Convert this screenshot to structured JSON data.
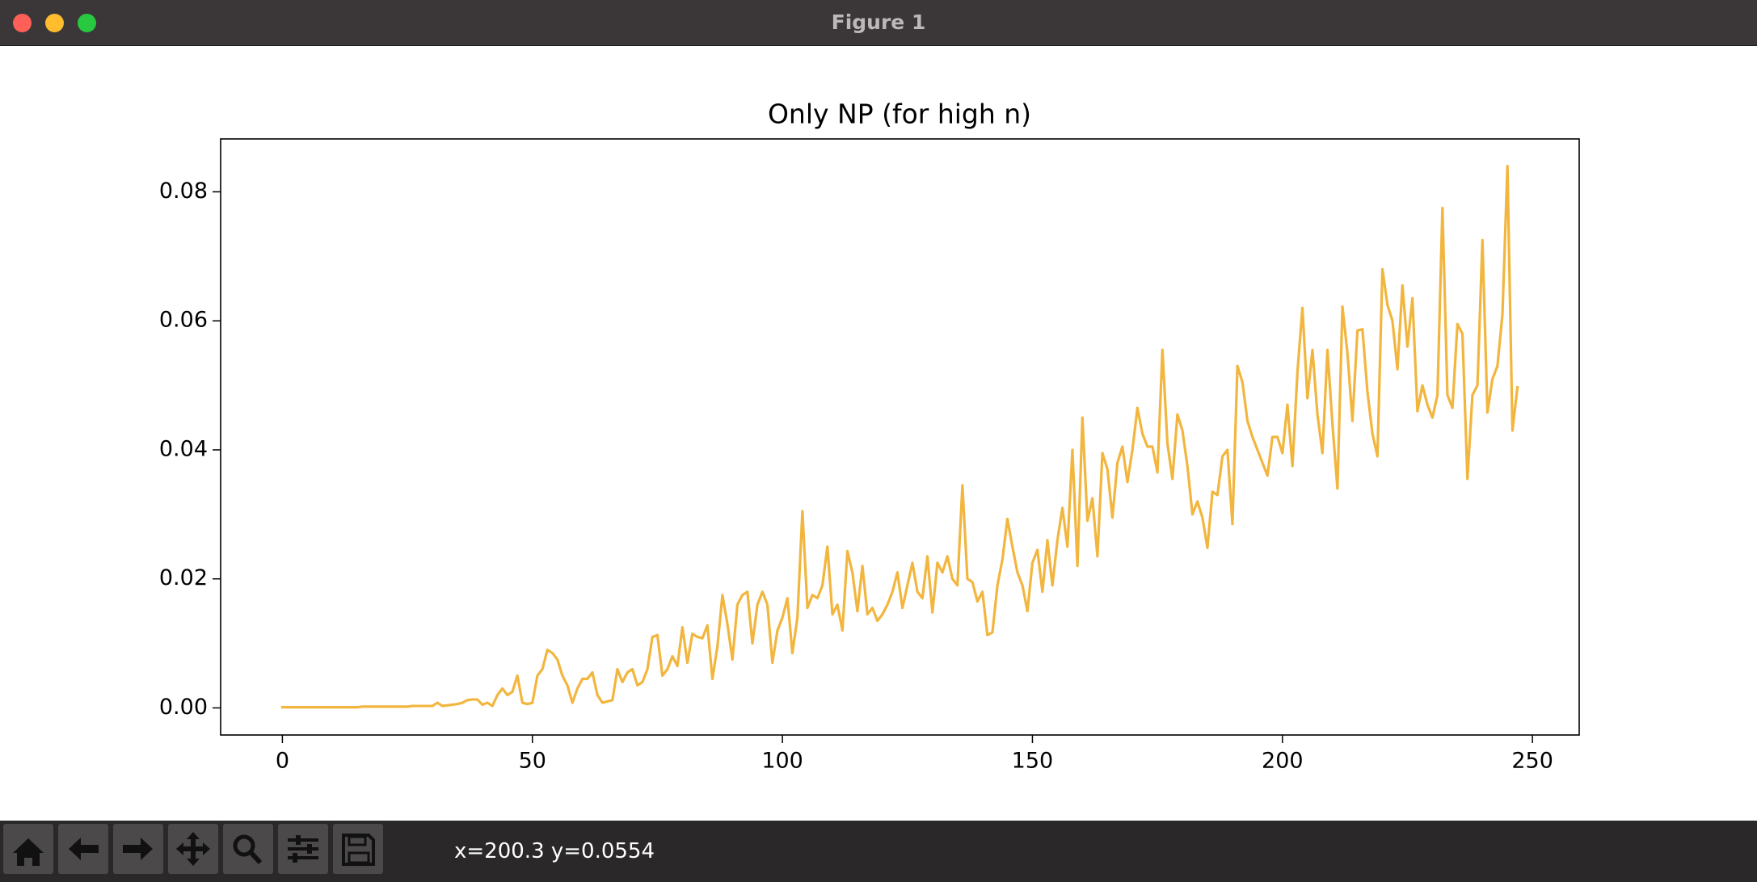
{
  "window": {
    "title": "Figure 1"
  },
  "chart_data": {
    "type": "line",
    "title": "Only NP (for high n)",
    "color": "#f2b63f",
    "x": [
      0,
      1,
      2,
      3,
      4,
      5,
      6,
      7,
      8,
      9,
      10,
      11,
      12,
      13,
      14,
      15,
      16,
      17,
      18,
      19,
      20,
      21,
      22,
      23,
      24,
      25,
      26,
      27,
      28,
      29,
      30,
      31,
      32,
      33,
      34,
      35,
      36,
      37,
      38,
      39,
      40,
      41,
      42,
      43,
      44,
      45,
      46,
      47,
      48,
      49,
      50,
      51,
      52,
      53,
      54,
      55,
      56,
      57,
      58,
      59,
      60,
      61,
      62,
      63,
      64,
      65,
      66,
      67,
      68,
      69,
      70,
      71,
      72,
      73,
      74,
      75,
      76,
      77,
      78,
      79,
      80,
      81,
      82,
      83,
      84,
      85,
      86,
      87,
      88,
      89,
      90,
      91,
      92,
      93,
      94,
      95,
      96,
      97,
      98,
      99,
      100,
      101,
      102,
      103,
      104,
      105,
      106,
      107,
      108,
      109,
      110,
      111,
      112,
      113,
      114,
      115,
      116,
      117,
      118,
      119,
      120,
      121,
      122,
      123,
      124,
      125,
      126,
      127,
      128,
      129,
      130,
      131,
      132,
      133,
      134,
      135,
      136,
      137,
      138,
      139,
      140,
      141,
      142,
      143,
      144,
      145,
      146,
      147,
      148,
      149,
      150,
      151,
      152,
      153,
      154,
      155,
      156,
      157,
      158,
      159,
      160,
      161,
      162,
      163,
      164,
      165,
      166,
      167,
      168,
      169,
      170,
      171,
      172,
      173,
      174,
      175,
      176,
      177,
      178,
      179,
      180,
      181,
      182,
      183,
      184,
      185,
      186,
      187,
      188,
      189,
      190,
      191,
      192,
      193,
      194,
      195,
      196,
      197,
      198,
      199,
      200,
      201,
      202,
      203,
      204,
      205,
      206,
      207,
      208,
      209,
      210,
      211,
      212,
      213,
      214,
      215,
      216,
      217,
      218,
      219,
      220,
      221,
      222,
      223,
      224,
      225,
      226,
      227,
      228,
      229,
      230,
      231,
      232,
      233,
      234,
      235,
      236,
      237,
      238,
      239,
      240,
      241,
      242,
      243,
      244,
      245,
      246,
      247
    ],
    "values": [
      0.0001,
      0.0001,
      0.0001,
      0.0001,
      0.0001,
      0.0001,
      0.0001,
      0.0001,
      0.0001,
      0.0001,
      0.0001,
      0.0001,
      0.0001,
      0.0001,
      0.0001,
      0.0001,
      0.0002,
      0.0002,
      0.0002,
      0.0002,
      0.0002,
      0.0002,
      0.0002,
      0.0002,
      0.0002,
      0.0002,
      0.0003,
      0.0003,
      0.0003,
      0.0003,
      0.0003,
      0.0008,
      0.0003,
      0.0004,
      0.0005,
      0.0006,
      0.0008,
      0.0012,
      0.0013,
      0.0013,
      0.0005,
      0.0008,
      0.0003,
      0.002,
      0.003,
      0.002,
      0.0025,
      0.005,
      0.0008,
      0.0006,
      0.0008,
      0.005,
      0.006,
      0.009,
      0.0085,
      0.0075,
      0.005,
      0.0035,
      0.0008,
      0.003,
      0.0045,
      0.0045,
      0.0055,
      0.002,
      0.0008,
      0.001,
      0.0012,
      0.006,
      0.004,
      0.0055,
      0.006,
      0.0035,
      0.004,
      0.006,
      0.011,
      0.0113,
      0.005,
      0.006,
      0.008,
      0.0065,
      0.0125,
      0.007,
      0.0115,
      0.011,
      0.0108,
      0.0128,
      0.0045,
      0.0095,
      0.0175,
      0.013,
      0.0075,
      0.016,
      0.0175,
      0.018,
      0.01,
      0.016,
      0.018,
      0.016,
      0.007,
      0.012,
      0.014,
      0.017,
      0.0085,
      0.014,
      0.0305,
      0.0155,
      0.0175,
      0.017,
      0.019,
      0.025,
      0.0145,
      0.016,
      0.012,
      0.0243,
      0.021,
      0.015,
      0.022,
      0.0145,
      0.0155,
      0.0135,
      0.0145,
      0.016,
      0.018,
      0.021,
      0.0155,
      0.019,
      0.0225,
      0.018,
      0.017,
      0.0235,
      0.0148,
      0.0225,
      0.021,
      0.0235,
      0.02,
      0.019,
      0.0345,
      0.02,
      0.0195,
      0.0165,
      0.018,
      0.0113,
      0.0117,
      0.019,
      0.023,
      0.0293,
      0.025,
      0.021,
      0.019,
      0.015,
      0.0225,
      0.0245,
      0.018,
      0.026,
      0.019,
      0.026,
      0.031,
      0.025,
      0.04,
      0.022,
      0.045,
      0.029,
      0.0325,
      0.0235,
      0.0395,
      0.037,
      0.0295,
      0.038,
      0.0405,
      0.035,
      0.04,
      0.0465,
      0.0425,
      0.0405,
      0.0405,
      0.0365,
      0.0555,
      0.041,
      0.0355,
      0.0455,
      0.043,
      0.0375,
      0.03,
      0.032,
      0.0295,
      0.0248,
      0.0335,
      0.033,
      0.039,
      0.04,
      0.0285,
      0.053,
      0.0505,
      0.0445,
      0.042,
      0.04,
      0.038,
      0.036,
      0.042,
      0.042,
      0.0395,
      0.047,
      0.0375,
      0.052,
      0.062,
      0.048,
      0.0555,
      0.0455,
      0.0395,
      0.0555,
      0.044,
      0.034,
      0.0622,
      0.055,
      0.0445,
      0.0585,
      0.0587,
      0.049,
      0.0425,
      0.039,
      0.068,
      0.0625,
      0.06,
      0.0525,
      0.0655,
      0.056,
      0.0635,
      0.046,
      0.05,
      0.047,
      0.045,
      0.0485,
      0.0775,
      0.0485,
      0.0465,
      0.0595,
      0.058,
      0.0355,
      0.0485,
      0.05,
      0.0725,
      0.0458,
      0.051,
      0.053,
      0.061,
      0.084,
      0.043,
      0.0497
    ],
    "xlim": [
      -12.35,
      259.35
    ],
    "ylim": [
      -0.0042,
      0.0882
    ],
    "xticks": [
      0,
      50,
      100,
      150,
      200,
      250
    ],
    "yticks": [
      {
        "value": 0,
        "label": "0.00"
      },
      0.02,
      0.04,
      0.06,
      0.08
    ],
    "grid": false
  },
  "toolbar": {
    "status": "x=200.3 y=0.0554"
  }
}
